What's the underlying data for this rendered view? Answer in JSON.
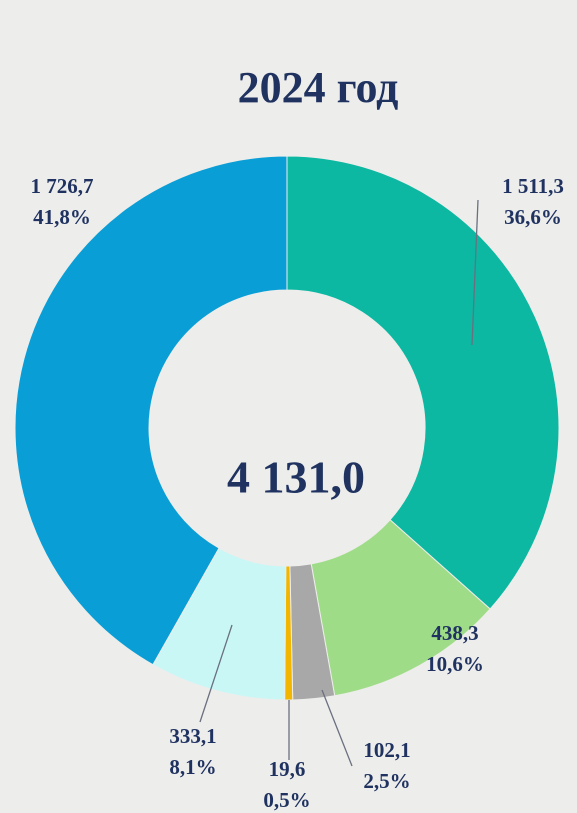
{
  "chart_data": {
    "type": "donut",
    "title": "2024 год",
    "categories": [
      null,
      null,
      null,
      null,
      null,
      null
    ],
    "values": [
      1511.3,
      438.3,
      102.1,
      19.6,
      333.1,
      1726.7
    ],
    "value_labels": [
      "1 511,3",
      "438,3",
      "102,1",
      "19,6",
      "333,1",
      "1 726,7"
    ],
    "percents": [
      36.6,
      10.6,
      2.5,
      0.5,
      8.1,
      41.8
    ],
    "percent_labels": [
      "36,6%",
      "10,6%",
      "2,5%",
      "0,5%",
      "8,1%",
      "41,8%"
    ],
    "colors": [
      "#0cb8a2",
      "#9fdc88",
      "#a8a8a8",
      "#f2b600",
      "#c9f7f6",
      "#0a9ed6"
    ],
    "total": {
      "value": 4131.0,
      "label": "4 131,0"
    }
  }
}
